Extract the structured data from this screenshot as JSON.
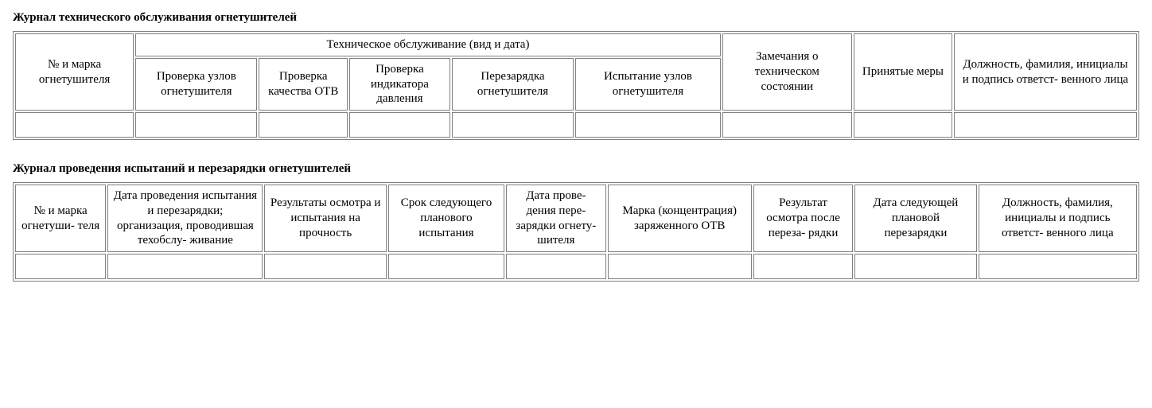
{
  "journal1": {
    "title": "Журнал технического обслуживания огнетушителей",
    "col_widths_pct": [
      10.7,
      11.0,
      8.0,
      9.1,
      11.0,
      13.1,
      11.7,
      8.9,
      16.5
    ],
    "header": {
      "number_and_brand": "№ и марка огнетушителя",
      "maintenance_group": "Техническое обслуживание (вид и дата)",
      "sub": {
        "nodes_check": "Проверка узлов огнетушителя",
        "otv_quality": "Проверка качества ОТВ",
        "pressure_indicator": "Проверка индикатора давления",
        "recharge": "Перезарядка огнетушителя",
        "nodes_test": "Испытание узлов огнетушителя"
      },
      "remarks": "Замечания о техническом состоянии",
      "actions": "Принятые меры",
      "responsible": "Должность, фамилия, инициалы и подпись ответст- венного лица"
    }
  },
  "journal2": {
    "title": "Журнал проведения испытаний и перезарядки огнетушителей",
    "col_widths_pct": [
      8.2,
      14.0,
      11.0,
      10.5,
      9.0,
      13.0,
      9.0,
      11.0,
      14.3
    ],
    "header": {
      "number_and_brand": "№ и марка огнетуши- теля",
      "test_date_org": "Дата проведения испытания и перезарядки; организация, проводившая техобслу- живание",
      "inspection_results": "Результаты осмотра и испытания на прочность",
      "next_test_date": "Срок следующего планового испытания",
      "recharge_date": "Дата прове- дения пере- зарядки огнету- шителя",
      "otv_brand": "Марка (концентрация) заряженного ОТВ",
      "post_recharge_inspection": "Результат осмотра после переза- рядки",
      "next_recharge_date": "Дата следующей плановой перезарядки",
      "responsible": "Должность, фамилия, инициалы и подпись ответст- венного лица"
    }
  },
  "style": {
    "background_color": "#ffffff",
    "text_color": "#000000",
    "border_color": "#808080",
    "font_family": "Times New Roman",
    "title_fontsize_pt": 11,
    "cell_fontsize_pt": 11
  }
}
